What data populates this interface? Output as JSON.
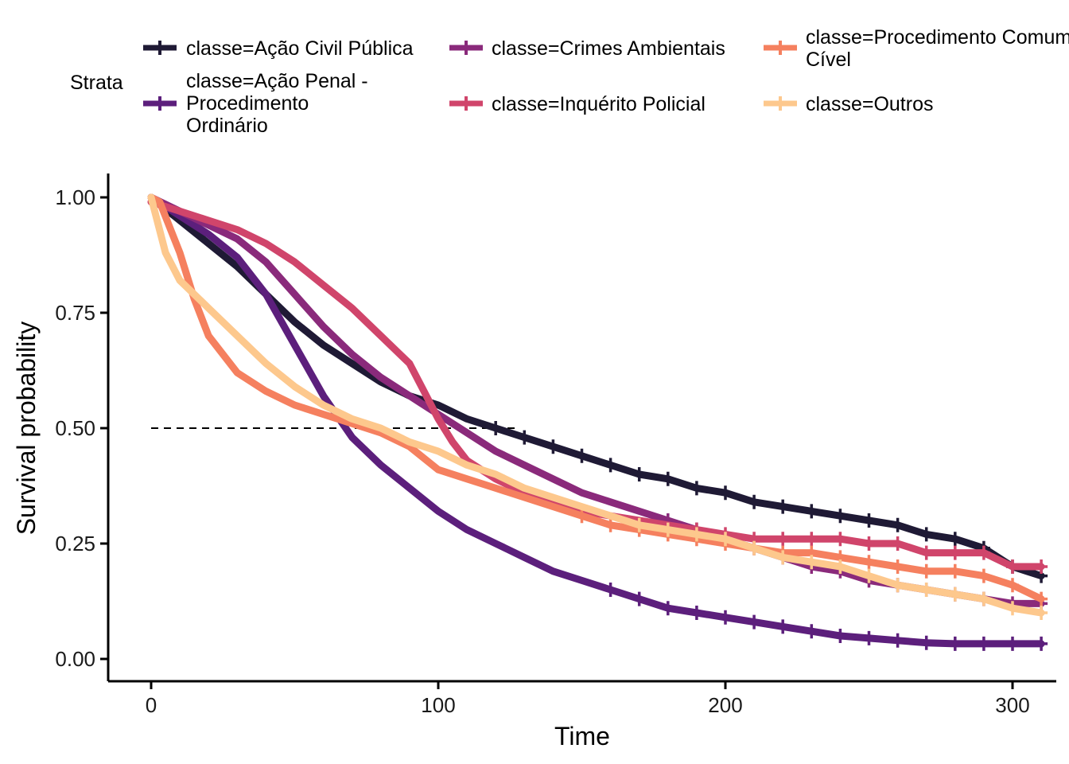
{
  "chart_data": {
    "type": "line",
    "subtype": "kaplan-meier survival curve",
    "xlabel": "Time",
    "ylabel": "Survival probability",
    "xlim": [
      -15,
      315
    ],
    "ylim": [
      -0.05,
      1.05
    ],
    "x_ticks": [
      0,
      100,
      200,
      300
    ],
    "x_tick_labels": [
      "0",
      "100",
      "200",
      "300"
    ],
    "y_ticks": [
      0,
      0.25,
      0.5,
      0.75,
      1
    ],
    "y_tick_labels": [
      "0.00",
      "0.25",
      "0.50",
      "0.75",
      "1.00"
    ],
    "grid": false,
    "median_line": {
      "y": 0.5,
      "x_from": 0,
      "x_to": 127,
      "style": "dashed"
    },
    "legend": {
      "title": "Strata",
      "position": "top",
      "entries": [
        [
          "classe=Ação Civil Pública"
        ],
        [
          "classe=Ação Penal -",
          "Procedimento",
          "Ordinário"
        ],
        [
          "classe=Crimes Ambientais"
        ],
        [
          "classe=Inquérito Policial"
        ],
        [
          "classe=Procedimento Comum",
          "Cível"
        ],
        [
          "classe=Outros"
        ]
      ]
    },
    "series": [
      {
        "name": "classe=Ação Civil Pública",
        "color": "#1f1a35",
        "width": 9,
        "x": [
          0,
          10,
          20,
          30,
          40,
          50,
          60,
          70,
          80,
          90,
          100,
          110,
          120,
          130,
          140,
          150,
          160,
          170,
          180,
          190,
          200,
          210,
          220,
          230,
          240,
          250,
          260,
          270,
          280,
          290,
          295,
          300,
          305,
          310
        ],
        "y": [
          1.0,
          0.95,
          0.9,
          0.85,
          0.79,
          0.73,
          0.68,
          0.64,
          0.6,
          0.57,
          0.55,
          0.52,
          0.5,
          0.48,
          0.46,
          0.44,
          0.42,
          0.4,
          0.39,
          0.37,
          0.36,
          0.34,
          0.33,
          0.32,
          0.31,
          0.3,
          0.29,
          0.27,
          0.26,
          0.24,
          0.22,
          0.2,
          0.19,
          0.18
        ],
        "censor_x": [
          120,
          130,
          140,
          150,
          160,
          170,
          180,
          190,
          200,
          210,
          220,
          230,
          240,
          250,
          260,
          270,
          280,
          290,
          300,
          310
        ]
      },
      {
        "name": "classe=Ação Penal - Procedimento Ordinário",
        "color": "#5c1f7c",
        "width": 9,
        "x": [
          0,
          10,
          20,
          30,
          40,
          50,
          60,
          70,
          80,
          90,
          100,
          110,
          120,
          130,
          140,
          150,
          160,
          170,
          180,
          190,
          200,
          210,
          220,
          230,
          240,
          250,
          260,
          270,
          280,
          290,
          300,
          310
        ],
        "y": [
          1.0,
          0.96,
          0.92,
          0.87,
          0.79,
          0.68,
          0.57,
          0.48,
          0.42,
          0.37,
          0.32,
          0.28,
          0.25,
          0.22,
          0.19,
          0.17,
          0.15,
          0.13,
          0.11,
          0.1,
          0.09,
          0.08,
          0.07,
          0.06,
          0.05,
          0.045,
          0.04,
          0.035,
          0.033,
          0.033,
          0.033,
          0.033
        ],
        "censor_x": [
          160,
          170,
          180,
          190,
          200,
          210,
          220,
          230,
          240,
          250,
          260,
          270,
          280,
          290,
          300,
          310
        ]
      },
      {
        "name": "classe=Crimes Ambientais",
        "color": "#8a2a7b",
        "width": 9,
        "x": [
          0,
          10,
          20,
          30,
          40,
          50,
          60,
          70,
          80,
          90,
          100,
          110,
          120,
          130,
          140,
          150,
          160,
          170,
          180,
          190,
          200,
          210,
          220,
          230,
          240,
          250,
          260,
          270,
          280,
          290,
          300,
          310
        ],
        "y": [
          1.0,
          0.97,
          0.94,
          0.91,
          0.86,
          0.79,
          0.72,
          0.66,
          0.61,
          0.57,
          0.53,
          0.49,
          0.45,
          0.42,
          0.39,
          0.36,
          0.34,
          0.32,
          0.3,
          0.28,
          0.26,
          0.24,
          0.22,
          0.2,
          0.19,
          0.17,
          0.16,
          0.15,
          0.14,
          0.13,
          0.12,
          0.12
        ],
        "censor_x": [
          180,
          190,
          200,
          210,
          220,
          230,
          240,
          250,
          260,
          270,
          280,
          290,
          300,
          310
        ]
      },
      {
        "name": "classe=Inquérito Policial",
        "color": "#d0456b",
        "width": 9,
        "x": [
          0,
          10,
          20,
          30,
          40,
          50,
          60,
          70,
          80,
          90,
          95,
          100,
          105,
          110,
          120,
          130,
          140,
          150,
          160,
          170,
          180,
          190,
          200,
          210,
          220,
          230,
          240,
          250,
          260,
          270,
          280,
          290,
          300,
          310
        ],
        "y": [
          0.99,
          0.97,
          0.95,
          0.93,
          0.9,
          0.86,
          0.81,
          0.76,
          0.7,
          0.64,
          0.58,
          0.52,
          0.47,
          0.43,
          0.39,
          0.36,
          0.34,
          0.32,
          0.31,
          0.3,
          0.29,
          0.28,
          0.27,
          0.26,
          0.26,
          0.26,
          0.26,
          0.25,
          0.25,
          0.23,
          0.23,
          0.23,
          0.2,
          0.2
        ],
        "censor_x": [
          190,
          200,
          210,
          220,
          230,
          240,
          250,
          260,
          270,
          280,
          290,
          300,
          310
        ]
      },
      {
        "name": "classe=Procedimento Comum Cível",
        "color": "#f5805f",
        "width": 9,
        "x": [
          0,
          3,
          10,
          15,
          20,
          30,
          40,
          50,
          60,
          70,
          80,
          90,
          100,
          110,
          120,
          130,
          140,
          150,
          160,
          170,
          180,
          190,
          200,
          210,
          220,
          230,
          240,
          250,
          260,
          270,
          280,
          290,
          300,
          310
        ],
        "y": [
          1.0,
          0.99,
          0.88,
          0.78,
          0.7,
          0.62,
          0.58,
          0.55,
          0.53,
          0.51,
          0.49,
          0.46,
          0.41,
          0.39,
          0.37,
          0.35,
          0.33,
          0.31,
          0.29,
          0.28,
          0.27,
          0.26,
          0.25,
          0.24,
          0.23,
          0.23,
          0.22,
          0.21,
          0.2,
          0.19,
          0.19,
          0.18,
          0.16,
          0.13
        ],
        "censor_x": [
          150,
          160,
          170,
          180,
          190,
          200,
          210,
          220,
          230,
          240,
          250,
          260,
          270,
          280,
          290,
          300,
          310
        ]
      },
      {
        "name": "classe=Outros",
        "color": "#fdc88d",
        "width": 9,
        "x": [
          0,
          5,
          10,
          20,
          30,
          40,
          50,
          60,
          70,
          80,
          90,
          100,
          110,
          120,
          130,
          140,
          150,
          160,
          170,
          180,
          190,
          200,
          210,
          220,
          230,
          240,
          250,
          260,
          270,
          280,
          290,
          300,
          310
        ],
        "y": [
          1.0,
          0.88,
          0.82,
          0.76,
          0.7,
          0.64,
          0.59,
          0.55,
          0.52,
          0.5,
          0.47,
          0.45,
          0.42,
          0.4,
          0.37,
          0.35,
          0.33,
          0.31,
          0.29,
          0.28,
          0.27,
          0.26,
          0.24,
          0.22,
          0.21,
          0.2,
          0.18,
          0.16,
          0.15,
          0.14,
          0.13,
          0.11,
          0.1
        ],
        "censor_x": [
          170,
          180,
          190,
          200,
          210,
          220,
          230,
          240,
          250,
          260,
          270,
          280,
          290,
          300,
          310
        ]
      }
    ]
  }
}
